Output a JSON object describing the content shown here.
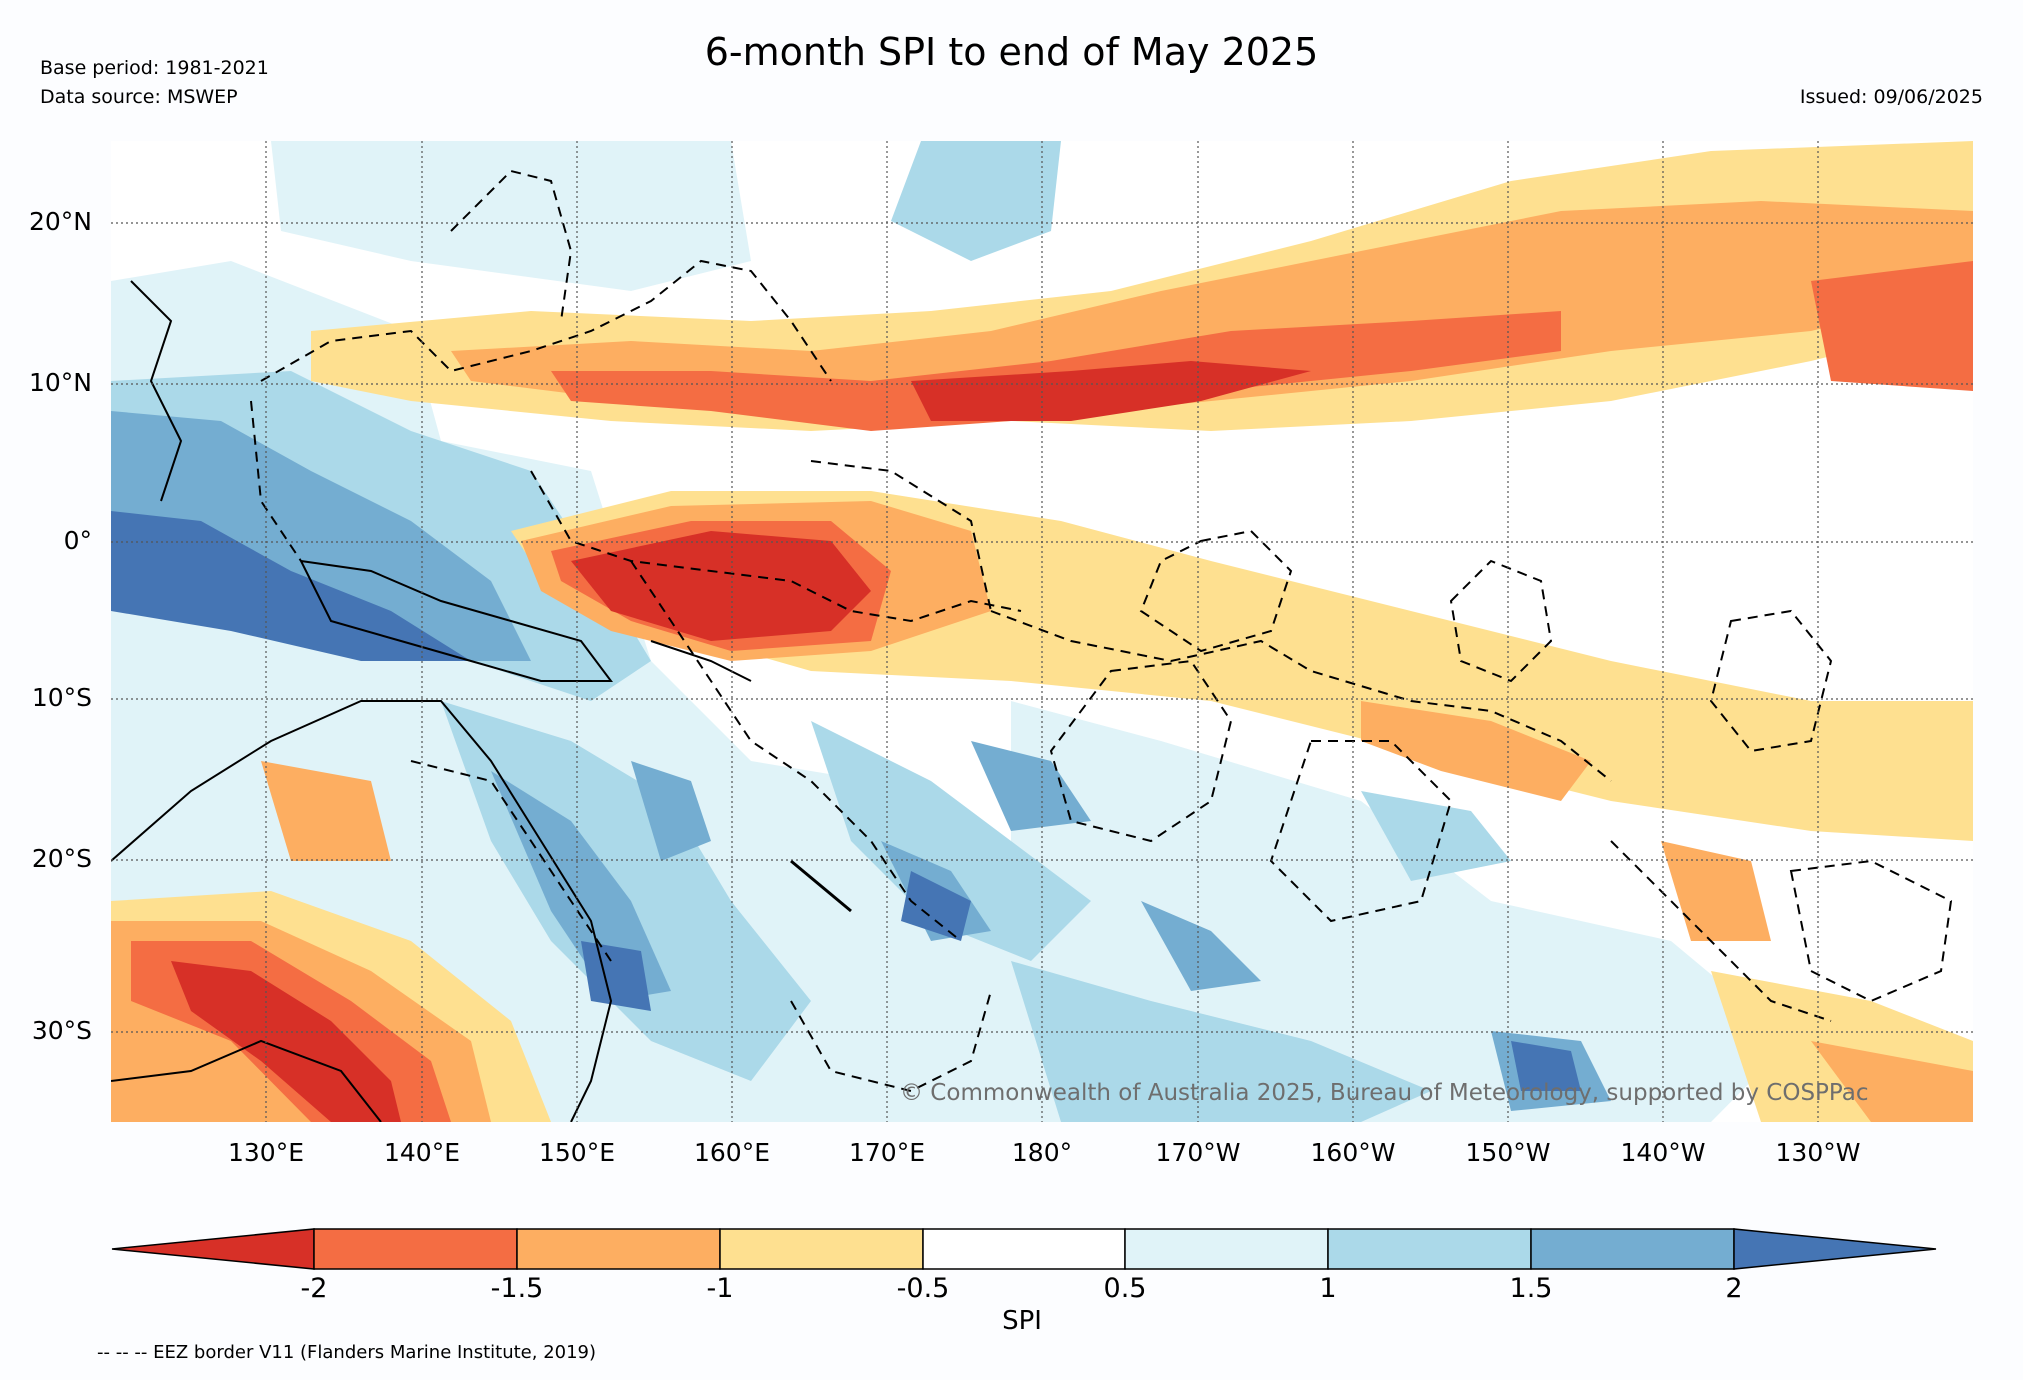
{
  "header": {
    "title": "6-month SPI to end of May 2025",
    "base_period": "Base period: 1981-2021",
    "data_source": "Data source: MSWEP",
    "issued": "Issued: 09/06/2025"
  },
  "map": {
    "lat_labels": [
      "20°N",
      "10°N",
      "0°",
      "10°S",
      "20°S",
      "30°S"
    ],
    "lon_labels": [
      "130°E",
      "140°E",
      "150°E",
      "160°E",
      "170°E",
      "180°",
      "170°W",
      "160°W",
      "150°W",
      "140°W",
      "130°W"
    ],
    "copyright": "© Commonwealth of Australia 2025, Bureau of Meteorology, supported by COSPPac",
    "anomaly_colors": {
      "extreme_dry": "#d73027",
      "very_dry": "#f46d43",
      "moderately_dry": "#fdae61",
      "slightly_dry": "#fee090",
      "near_normal": "#ffffff",
      "slightly_wet": "#e0f3f8",
      "moderately_wet": "#abd9e9",
      "very_wet": "#74add1",
      "extreme_wet": "#4575b4"
    }
  },
  "colorbar": {
    "label": "SPI",
    "ticks": [
      "-2",
      "-1.5",
      "-1",
      "-0.5",
      "0.5",
      "1",
      "1.5",
      "2"
    ],
    "colors": [
      "#d73027",
      "#f46d43",
      "#fdae61",
      "#fee090",
      "#ffffff",
      "#e0f3f8",
      "#abd9e9",
      "#74add1",
      "#4575b4"
    ]
  },
  "footnote": "-- -- -- EEZ border V11 (Flanders Marine Institute, 2019)"
}
